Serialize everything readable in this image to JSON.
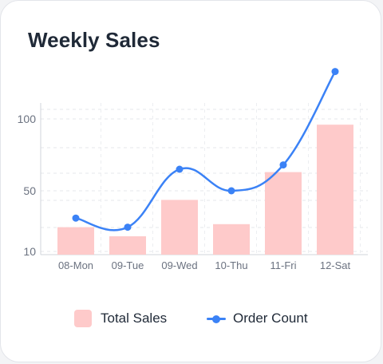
{
  "card": {
    "title": "Weekly Sales"
  },
  "chart_data": {
    "type": "bar",
    "title": "Weekly Sales",
    "categories": [
      "08-Mon",
      "09-Tue",
      "09-Wed",
      "10-Thu",
      "11-Fri",
      "12-Sat"
    ],
    "series": [
      {
        "name": "Total Sales",
        "type": "bar",
        "values": [
          26,
          20,
          44,
          28,
          63,
          96
        ],
        "color": "#fecaca"
      },
      {
        "name": "Order Count",
        "type": "line",
        "smooth": true,
        "values": [
          32,
          26,
          65,
          50,
          68,
          133
        ],
        "color": "#3b82f6"
      }
    ],
    "y_ticks": [
      "10",
      "50",
      "100"
    ],
    "ylim": [
      10,
      120
    ],
    "grid": true,
    "legend_position": "bottom"
  },
  "legend": {
    "items": [
      {
        "label": "Total Sales",
        "swatch": "bar",
        "color": "#fecaca"
      },
      {
        "label": "Order Count",
        "swatch": "line-dot",
        "color": "#3b82f6"
      }
    ]
  }
}
